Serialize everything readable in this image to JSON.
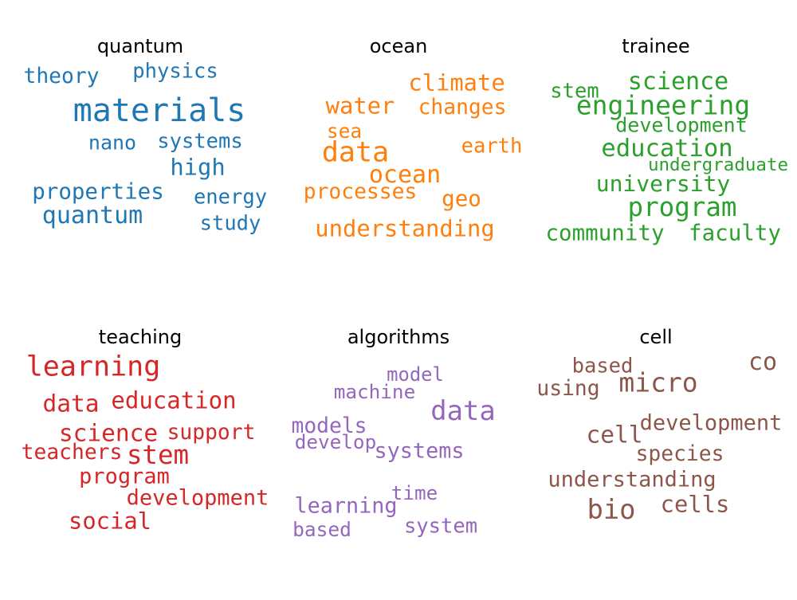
{
  "chart_data": {
    "type": "wordcloud",
    "panels": [
      {
        "title": "quantum",
        "color": "#1f77b4",
        "words": [
          {
            "text": "theory",
            "weight": 0.45
          },
          {
            "text": "physics",
            "weight": 0.42
          },
          {
            "text": "materials",
            "weight": 1.0
          },
          {
            "text": "nano",
            "weight": 0.4
          },
          {
            "text": "systems",
            "weight": 0.42
          },
          {
            "text": "high",
            "weight": 0.55
          },
          {
            "text": "properties",
            "weight": 0.5
          },
          {
            "text": "energy",
            "weight": 0.42
          },
          {
            "text": "quantum",
            "weight": 0.6
          },
          {
            "text": "study",
            "weight": 0.42
          }
        ]
      },
      {
        "title": "ocean",
        "color": "#ff7f0e",
        "words": [
          {
            "text": "climate",
            "weight": 0.55
          },
          {
            "text": "water",
            "weight": 0.55
          },
          {
            "text": "changes",
            "weight": 0.45
          },
          {
            "text": "sea",
            "weight": 0.38
          },
          {
            "text": "data",
            "weight": 0.8
          },
          {
            "text": "earth",
            "weight": 0.42
          },
          {
            "text": "ocean",
            "weight": 0.6
          },
          {
            "text": "processes",
            "weight": 0.45
          },
          {
            "text": "geo",
            "weight": 0.5
          },
          {
            "text": "understanding",
            "weight": 0.55
          }
        ]
      },
      {
        "title": "trainee",
        "color": "#2ca02c",
        "words": [
          {
            "text": "stem",
            "weight": 0.42
          },
          {
            "text": "science",
            "weight": 0.6
          },
          {
            "text": "engineering",
            "weight": 0.72
          },
          {
            "text": "development",
            "weight": 0.4
          },
          {
            "text": "education",
            "weight": 0.62
          },
          {
            "text": "undergraduate",
            "weight": 0.3
          },
          {
            "text": "university",
            "weight": 0.52
          },
          {
            "text": "program",
            "weight": 0.7
          },
          {
            "text": "community",
            "weight": 0.5
          },
          {
            "text": "faculty",
            "weight": 0.5
          }
        ]
      },
      {
        "title": "teaching",
        "color": "#d62728",
        "words": [
          {
            "text": "learning",
            "weight": 0.8
          },
          {
            "text": "data",
            "weight": 0.58
          },
          {
            "text": "education",
            "weight": 0.56
          },
          {
            "text": "science",
            "weight": 0.58
          },
          {
            "text": "support",
            "weight": 0.45
          },
          {
            "text": "teachers",
            "weight": 0.45
          },
          {
            "text": "stem",
            "weight": 0.7
          },
          {
            "text": "program",
            "weight": 0.48
          },
          {
            "text": "development",
            "weight": 0.48
          },
          {
            "text": "social",
            "weight": 0.55
          }
        ]
      },
      {
        "title": "algorithms",
        "color": "#9467bd",
        "words": [
          {
            "text": "model",
            "weight": 0.35
          },
          {
            "text": "machine",
            "weight": 0.37
          },
          {
            "text": "data",
            "weight": 0.75
          },
          {
            "text": "models",
            "weight": 0.45
          },
          {
            "text": "develop",
            "weight": 0.37
          },
          {
            "text": "systems",
            "weight": 0.47
          },
          {
            "text": "time",
            "weight": 0.37
          },
          {
            "text": "learning",
            "weight": 0.47
          },
          {
            "text": "based",
            "weight": 0.38
          },
          {
            "text": "system",
            "weight": 0.42
          }
        ]
      },
      {
        "title": "cell",
        "color": "#8c564b",
        "words": [
          {
            "text": "based",
            "weight": 0.42
          },
          {
            "text": "co",
            "weight": 0.6
          },
          {
            "text": "micro",
            "weight": 0.72
          },
          {
            "text": "using",
            "weight": 0.45
          },
          {
            "text": "development",
            "weight": 0.48
          },
          {
            "text": "cell",
            "weight": 0.58
          },
          {
            "text": "species",
            "weight": 0.45
          },
          {
            "text": "understanding",
            "weight": 0.48
          },
          {
            "text": "bio",
            "weight": 0.75
          },
          {
            "text": "cells",
            "weight": 0.55
          }
        ]
      }
    ]
  }
}
